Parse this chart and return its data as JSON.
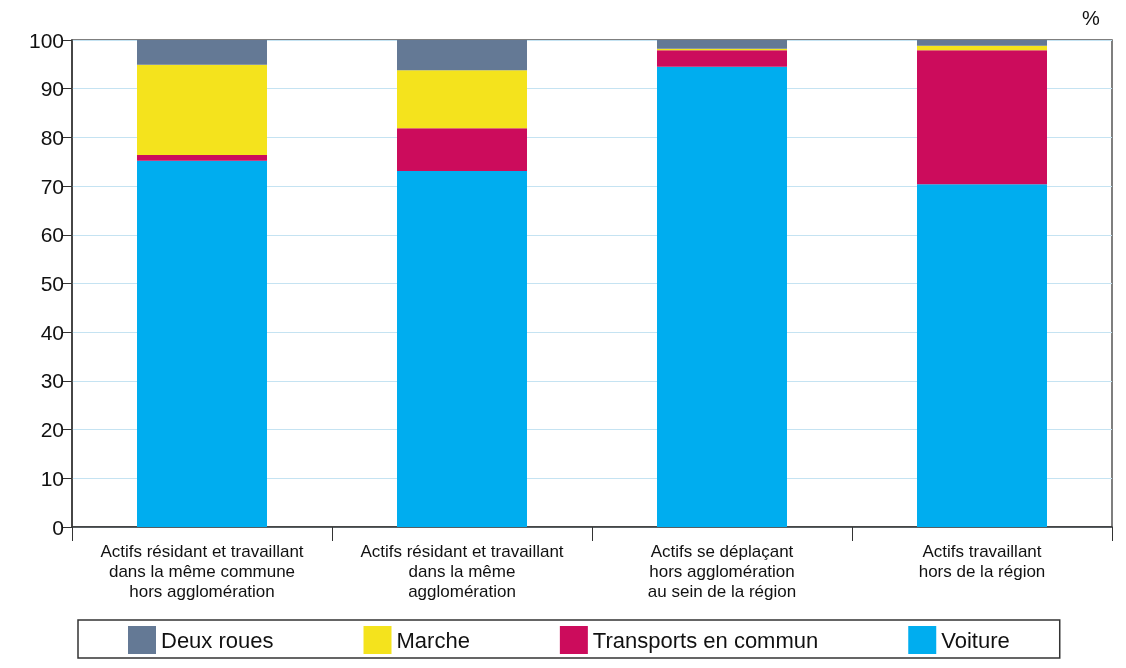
{
  "chart_data": {
    "type": "bar",
    "stacked": true,
    "ylabel": "%",
    "categories": [
      "Actifs résidant et travaillant\ndans la même commune\nhors agglomération",
      "Actifs résidant et travaillant\ndans la même\nagglomération",
      "Actifs se déplaçant\nhors agglomération\nau sein de la région",
      "Actifs travaillant\nhors de la région"
    ],
    "series": [
      {
        "name": "Voiture",
        "color": "#00adef",
        "values": [
          75.2,
          73.1,
          94.5,
          70.4
        ]
      },
      {
        "name": "Transports en commun",
        "color": "#cc0c5c",
        "values": [
          1.2,
          8.8,
          3.4,
          27.5
        ]
      },
      {
        "name": "Marche",
        "color": "#f4e31d",
        "values": [
          18.5,
          11.9,
          0.3,
          0.9
        ]
      },
      {
        "name": "Deux roues",
        "color": "#647995",
        "values": [
          5.1,
          6.2,
          1.8,
          1.2
        ]
      }
    ],
    "ylim": [
      0,
      100
    ],
    "yticks": [
      0,
      10,
      20,
      30,
      40,
      50,
      60,
      70,
      80,
      90,
      100
    ],
    "grid": "y",
    "legend": "bottom"
  }
}
